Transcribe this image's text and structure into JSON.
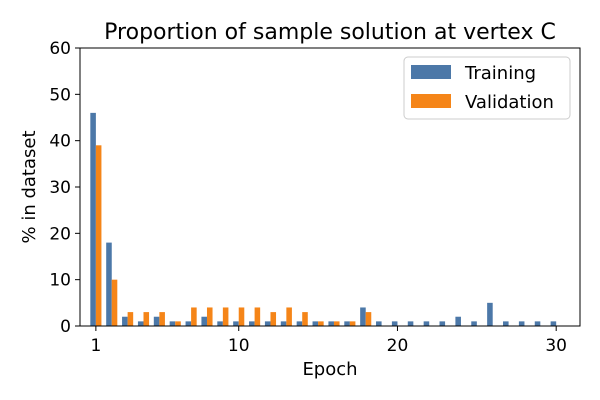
{
  "chart_data": {
    "type": "bar",
    "title": "Proportion of sample solution at vertex C",
    "xlabel": "Epoch",
    "ylabel": "% in dataset",
    "xlim": [
      0,
      31.5
    ],
    "ylim": [
      0,
      60
    ],
    "xticks": [
      1,
      10,
      20,
      30
    ],
    "yticks": [
      0,
      10,
      20,
      30,
      40,
      50,
      60
    ],
    "grid": false,
    "legend_position": "top-right",
    "x": [
      1,
      2,
      3,
      4,
      5,
      6,
      7,
      8,
      9,
      10,
      11,
      12,
      13,
      14,
      15,
      16,
      17,
      18,
      19,
      20,
      21,
      22,
      23,
      24,
      25,
      26,
      27,
      28,
      29,
      30
    ],
    "series": [
      {
        "name": "Training",
        "color": "#4c78a8",
        "values": [
          46,
          18,
          2,
          1,
          2,
          1,
          1,
          2,
          1,
          1,
          1,
          1,
          1,
          1,
          1,
          1,
          1,
          4,
          1,
          1,
          1,
          1,
          1,
          2,
          1,
          5,
          1,
          1,
          1,
          1
        ]
      },
      {
        "name": "Validation",
        "color": "#f58518",
        "values": [
          39,
          10,
          3,
          3,
          3,
          1,
          4,
          4,
          4,
          4,
          4,
          3,
          4,
          3,
          1,
          1,
          1,
          3,
          0,
          0,
          0,
          0,
          0,
          0,
          0,
          0,
          0,
          0,
          0,
          0
        ]
      }
    ]
  }
}
